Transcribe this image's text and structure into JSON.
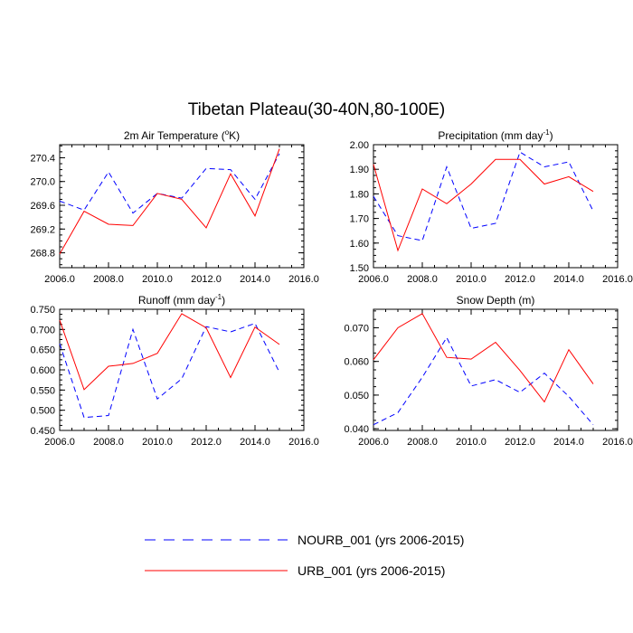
{
  "figure": {
    "title": "Tibetan Plateau(30-40N,80-100E)"
  },
  "legend": [
    {
      "label": "NOURB_001 (yrs 2006-2015)",
      "color": "#0000ff",
      "dash": "dashed"
    },
    {
      "label": "URB_001 (yrs 2006-2015)",
      "color": "#ff0000",
      "dash": "solid"
    }
  ],
  "chart_data": [
    {
      "type": "line",
      "title": "2m Air Temperature",
      "title_unit": "(°K)",
      "xlim": [
        2006,
        2016
      ],
      "xticks": [
        2006,
        2008,
        2010,
        2012,
        2014,
        2016
      ],
      "xtick_labels": [
        "2006.0",
        "2008.0",
        "2010.0",
        "2012.0",
        "2014.0",
        "2016.0"
      ],
      "ylim": [
        268.55,
        270.62
      ],
      "yticks": [
        268.8,
        269.2,
        269.6,
        270.0,
        270.4
      ],
      "ytick_labels": [
        "268.8",
        "269.2",
        "269.6",
        "270.0",
        "270.4"
      ],
      "x": [
        2006,
        2007,
        2008,
        2009,
        2010,
        2011,
        2012,
        2013,
        2014,
        2015
      ],
      "series": [
        {
          "name": "NOURB_001 (yrs 2006-2015)",
          "color": "#0000ff",
          "dash": "dashed",
          "values": [
            269.67,
            269.52,
            270.16,
            269.47,
            269.8,
            269.72,
            270.22,
            270.2,
            269.7,
            270.47
          ]
        },
        {
          "name": "URB_001 (yrs 2006-2015)",
          "color": "#ff0000",
          "dash": "solid",
          "values": [
            268.78,
            269.5,
            269.28,
            269.26,
            269.8,
            269.7,
            269.22,
            270.13,
            269.42,
            270.55
          ]
        }
      ]
    },
    {
      "type": "line",
      "title": "Precipitation",
      "title_unit": "(mm day-1)",
      "xlim": [
        2006,
        2016
      ],
      "xticks": [
        2006,
        2008,
        2010,
        2012,
        2014,
        2016
      ],
      "xtick_labels": [
        "2006.0",
        "2008.0",
        "2010.0",
        "2012.0",
        "2014.0",
        "2016.0"
      ],
      "ylim": [
        1.5,
        2.0
      ],
      "yticks": [
        1.5,
        1.6,
        1.7,
        1.8,
        1.9,
        2.0
      ],
      "ytick_labels": [
        "1.50",
        "1.60",
        "1.70",
        "1.80",
        "1.90",
        "2.00"
      ],
      "x": [
        2006,
        2007,
        2008,
        2009,
        2010,
        2011,
        2012,
        2013,
        2014,
        2015
      ],
      "series": [
        {
          "name": "NOURB_001 (yrs 2006-2015)",
          "color": "#0000ff",
          "dash": "dashed",
          "values": [
            1.79,
            1.63,
            1.61,
            1.91,
            1.66,
            1.68,
            1.97,
            1.91,
            1.93,
            1.73
          ]
        },
        {
          "name": "URB_001 (yrs 2006-2015)",
          "color": "#ff0000",
          "dash": "solid",
          "values": [
            1.92,
            1.57,
            1.82,
            1.76,
            1.84,
            1.94,
            1.94,
            1.84,
            1.87,
            1.81
          ]
        }
      ]
    },
    {
      "type": "line",
      "title": "Runoff",
      "title_unit": "(mm day-1)",
      "xlim": [
        2006,
        2016
      ],
      "xticks": [
        2006,
        2008,
        2010,
        2012,
        2014,
        2016
      ],
      "xtick_labels": [
        "2006.0",
        "2008.0",
        "2010.0",
        "2012.0",
        "2014.0",
        "2016.0"
      ],
      "ylim": [
        0.45,
        0.75
      ],
      "yticks": [
        0.45,
        0.5,
        0.55,
        0.6,
        0.65,
        0.7,
        0.75
      ],
      "ytick_labels": [
        "0.450",
        "0.500",
        "0.550",
        "0.600",
        "0.650",
        "0.700",
        "0.750"
      ],
      "x": [
        2006,
        2007,
        2008,
        2009,
        2010,
        2011,
        2012,
        2013,
        2014,
        2015
      ],
      "series": [
        {
          "name": "NOURB_001 (yrs 2006-2015)",
          "color": "#0000ff",
          "dash": "dashed",
          "values": [
            0.665,
            0.482,
            0.487,
            0.7,
            0.528,
            0.578,
            0.707,
            0.694,
            0.715,
            0.594
          ]
        },
        {
          "name": "URB_001 (yrs 2006-2015)",
          "color": "#ff0000",
          "dash": "solid",
          "values": [
            0.723,
            0.551,
            0.609,
            0.616,
            0.641,
            0.739,
            0.704,
            0.581,
            0.706,
            0.663
          ]
        }
      ]
    },
    {
      "type": "line",
      "title": "Snow Depth",
      "title_unit": "(m)",
      "xlim": [
        2006,
        2016
      ],
      "xticks": [
        2006,
        2008,
        2010,
        2012,
        2014,
        2016
      ],
      "xtick_labels": [
        "2006.0",
        "2008.0",
        "2010.0",
        "2012.0",
        "2014.0",
        "2016.0"
      ],
      "ylim": [
        0.0395,
        0.0755
      ],
      "yticks": [
        0.04,
        0.05,
        0.06,
        0.07
      ],
      "ytick_labels": [
        "0.040",
        "0.050",
        "0.060",
        "0.070"
      ],
      "x": [
        2006,
        2007,
        2008,
        2009,
        2010,
        2011,
        2012,
        2013,
        2014,
        2015
      ],
      "series": [
        {
          "name": "NOURB_001 (yrs 2006-2015)",
          "color": "#0000ff",
          "dash": "dashed",
          "values": [
            0.0412,
            0.0448,
            0.0553,
            0.0671,
            0.0527,
            0.0546,
            0.0508,
            0.0565,
            0.0496,
            0.0412
          ]
        },
        {
          "name": "URB_001 (yrs 2006-2015)",
          "color": "#ff0000",
          "dash": "solid",
          "values": [
            0.0605,
            0.07,
            0.0742,
            0.0612,
            0.0607,
            0.0657,
            0.0573,
            0.048,
            0.0635,
            0.0533
          ]
        }
      ]
    }
  ]
}
